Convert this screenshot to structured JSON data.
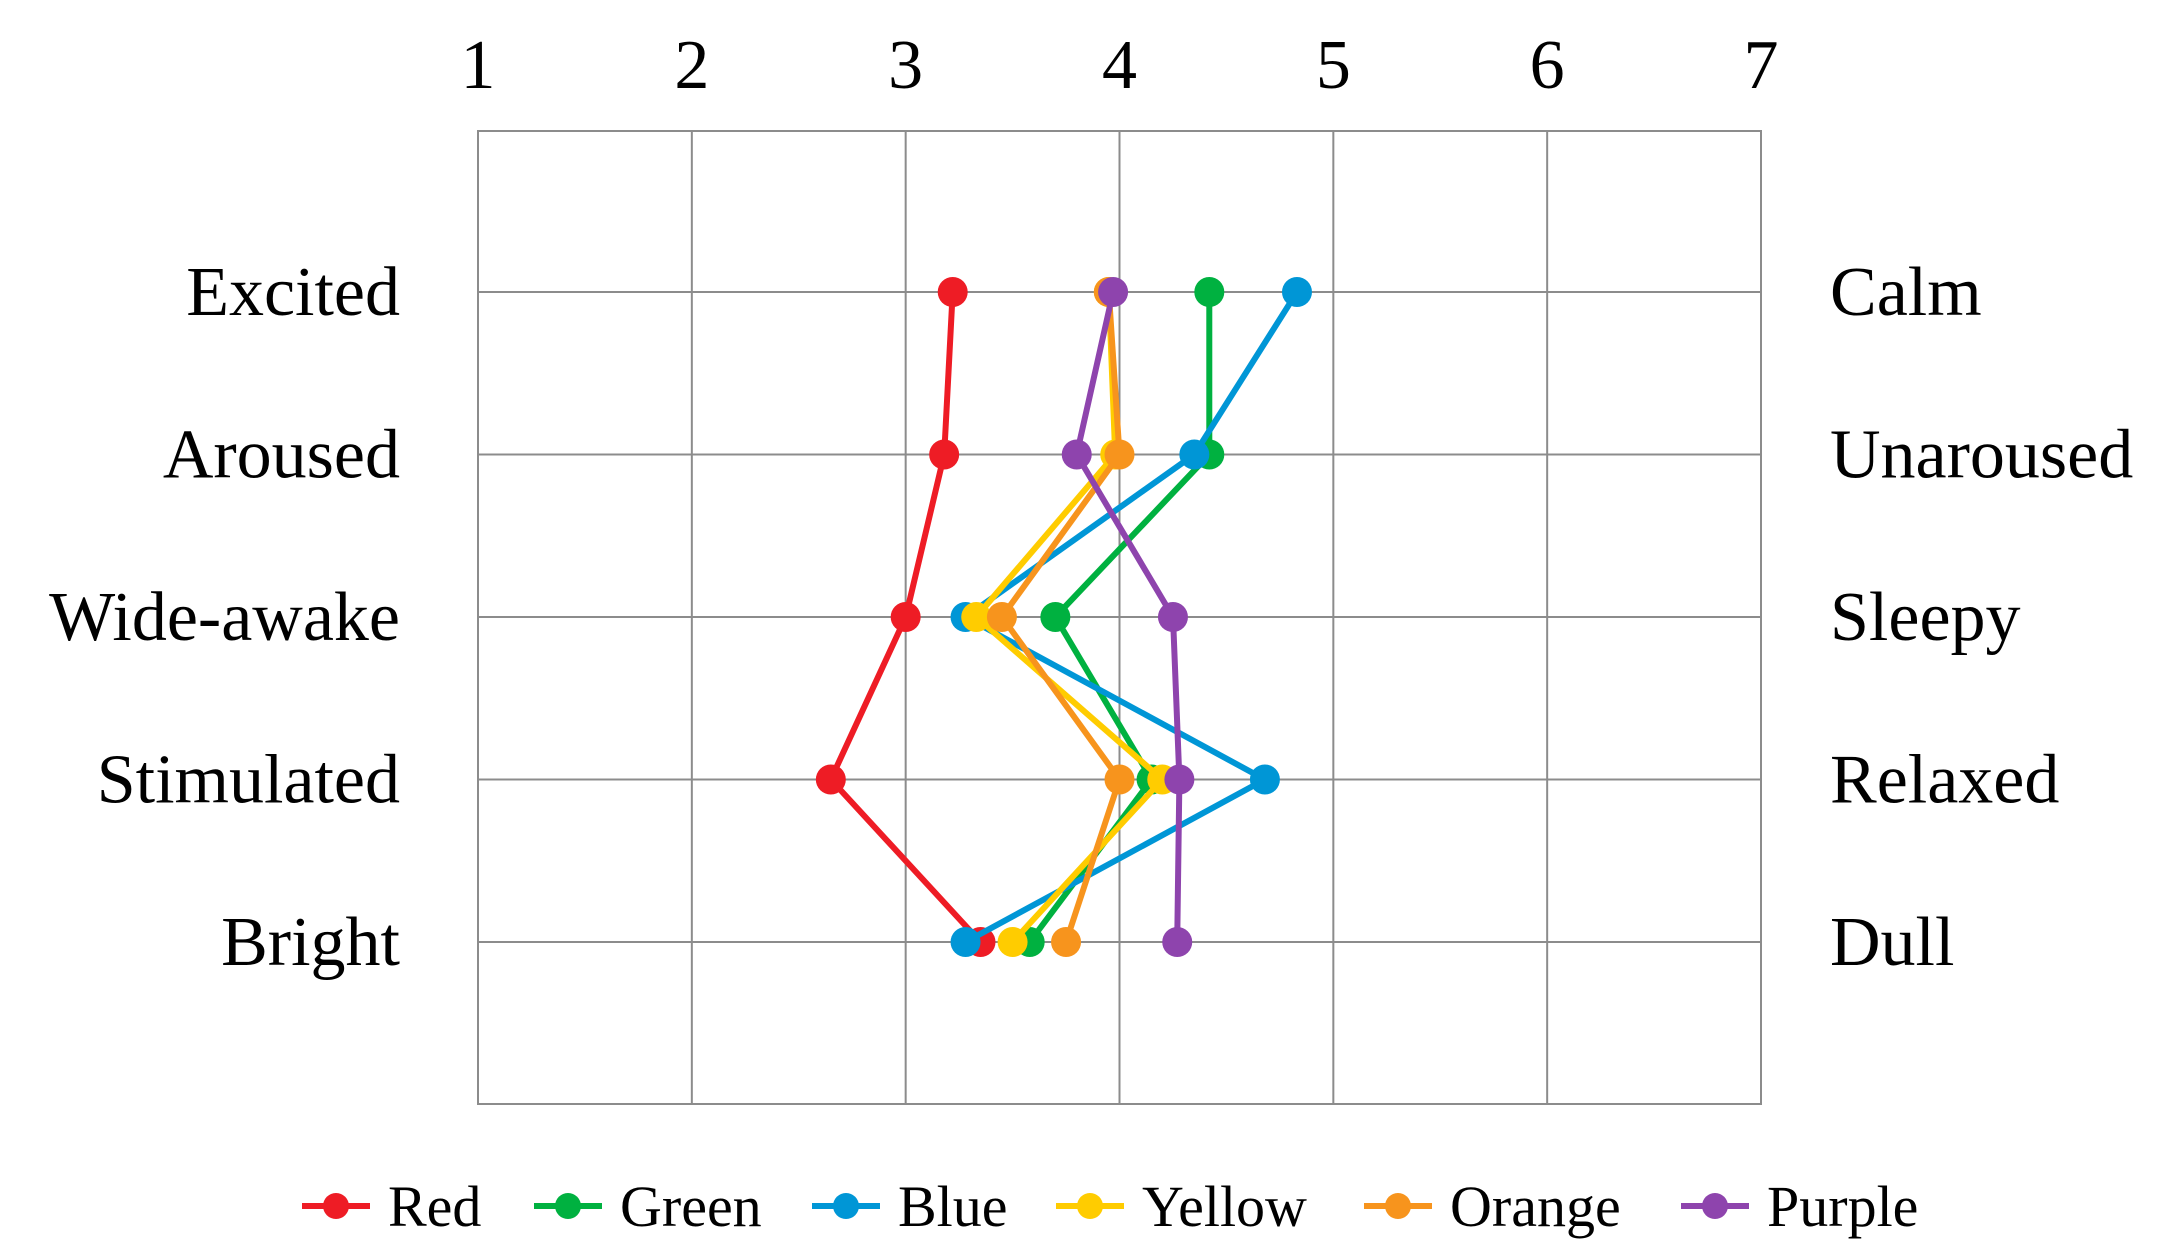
{
  "chart_data": {
    "type": "line",
    "orientation": "horizontal-profile",
    "x_ticks": [
      "1",
      "2",
      "3",
      "4",
      "5",
      "6",
      "7"
    ],
    "xlim": [
      1,
      7
    ],
    "x_axis_position": "top",
    "grid": true,
    "legend_position": "bottom",
    "categories_left": [
      "Excited",
      "Aroused",
      "Wide-awake",
      "Stimulated",
      "Bright"
    ],
    "categories_right": [
      "Calm",
      "Unaroused",
      "Sleepy",
      "Relaxed",
      "Dull"
    ],
    "series": [
      {
        "name": "Red",
        "color": "#ee1c25",
        "values": [
          3.22,
          3.18,
          3.0,
          2.65,
          3.35
        ]
      },
      {
        "name": "Green",
        "color": "#00b140",
        "values": [
          4.42,
          4.42,
          3.7,
          4.15,
          3.58
        ]
      },
      {
        "name": "Blue",
        "color": "#0096d6",
        "values": [
          4.83,
          4.35,
          3.28,
          4.68,
          3.28
        ]
      },
      {
        "name": "Yellow",
        "color": "#ffcc00",
        "values": [
          3.95,
          3.98,
          3.33,
          4.2,
          3.5
        ]
      },
      {
        "name": "Orange",
        "color": "#f7941d",
        "values": [
          3.95,
          4.0,
          3.45,
          4.0,
          3.75
        ]
      },
      {
        "name": "Purple",
        "color": "#8e44ad",
        "values": [
          3.97,
          3.8,
          4.25,
          4.28,
          4.27
        ]
      }
    ]
  }
}
